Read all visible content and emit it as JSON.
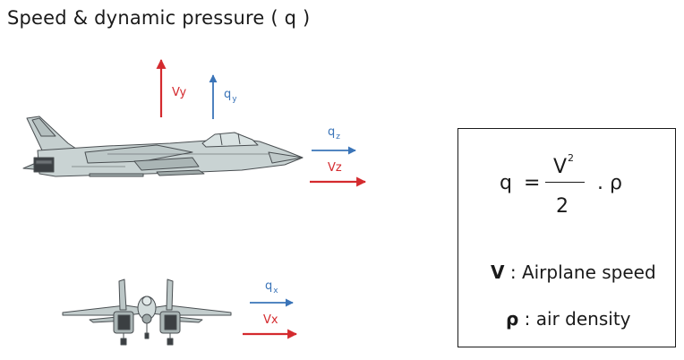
{
  "title": "Speed & dynamic pressure ( q )",
  "labels": {
    "vy": "Vy",
    "qy_base": "q",
    "qy_sub": "y",
    "qz_base": "q",
    "qz_sub": "z",
    "vz": "Vz",
    "qx_base": "q",
    "qx_sub": "x",
    "vx": "Vx"
  },
  "formula": {
    "lhs": "q",
    "equals": "=",
    "numerator_base": "V",
    "numerator_exp": "2",
    "denominator": "2",
    "times_rho": ". ρ"
  },
  "legend": {
    "v_symbol": "V",
    "v_text": " : Airplane speed",
    "rho_symbol": "ρ",
    "rho_text": " : air density"
  },
  "colors": {
    "speed_arrow": "#d42a2e",
    "pressure_arrow": "#3a74b8",
    "aircraft_fill": "#c9d3d3",
    "aircraft_stroke": "#4a4f52"
  }
}
